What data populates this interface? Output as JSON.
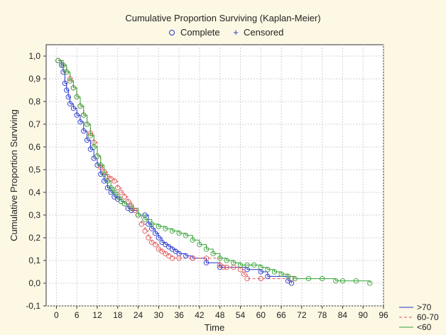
{
  "chart_data": {
    "type": "line",
    "title": "Cumulative Proportion Surviving (Kaplan-Meier)",
    "xlabel": "Time",
    "ylabel": "Cumulative Proportion Surviving",
    "xlim": [
      -3,
      96
    ],
    "ylim": [
      -0.1,
      1.05
    ],
    "x_ticks": [
      "0",
      "6",
      "12",
      "18",
      "24",
      "30",
      "36",
      "42",
      "48",
      "54",
      "60",
      "66",
      "72",
      "78",
      "84",
      "90",
      "96"
    ],
    "y_ticks": [
      "-0,1",
      "0,0",
      "0,1",
      "0,2",
      "0,3",
      "0,4",
      "0,5",
      "0,6",
      "0,7",
      "0,8",
      "0,9",
      "1,0"
    ],
    "grid": true,
    "marker_legend": [
      {
        "label": "Complete",
        "symbol": "o"
      },
      {
        "label": "Censored",
        "symbol": "+"
      }
    ],
    "legend_position": "bottom-right",
    "series": [
      {
        "name": ">70",
        "color": "#2233cc",
        "dash": "solid",
        "x": [
          0.5,
          1.5,
          2,
          2.5,
          3,
          3.5,
          4,
          5,
          6,
          7,
          8,
          9,
          10,
          11,
          12,
          13,
          14,
          15,
          16,
          17,
          18,
          19,
          20,
          21,
          22,
          24,
          26,
          27,
          28,
          29,
          30,
          31,
          32,
          33,
          34,
          35,
          36,
          38,
          40,
          44,
          48,
          56,
          60,
          62,
          68,
          69
        ],
        "y": [
          0.98,
          0.96,
          0.93,
          0.88,
          0.85,
          0.82,
          0.79,
          0.77,
          0.74,
          0.71,
          0.67,
          0.63,
          0.59,
          0.55,
          0.52,
          0.48,
          0.45,
          0.42,
          0.4,
          0.38,
          0.37,
          0.36,
          0.35,
          0.33,
          0.32,
          0.3,
          0.3,
          0.26,
          0.24,
          0.22,
          0.2,
          0.18,
          0.17,
          0.16,
          0.15,
          0.14,
          0.13,
          0.12,
          0.11,
          0.09,
          0.07,
          0.06,
          0.05,
          0.03,
          0.01,
          0.0
        ]
      },
      {
        "name": "60-70",
        "color": "#e05050",
        "dash": "4,3",
        "x": [
          0.5,
          2,
          3,
          4,
          5,
          6,
          7,
          8,
          9,
          10,
          11,
          12,
          13,
          14,
          15,
          16,
          17,
          18,
          19,
          20,
          21,
          22,
          23,
          24,
          25,
          26,
          27,
          28,
          29,
          30,
          31,
          32,
          33,
          34,
          36,
          40,
          44,
          48,
          49,
          50,
          52,
          54,
          55,
          56,
          60,
          69
        ],
        "y": [
          0.98,
          0.96,
          0.93,
          0.9,
          0.86,
          0.82,
          0.78,
          0.74,
          0.7,
          0.66,
          0.62,
          0.56,
          0.51,
          0.49,
          0.47,
          0.46,
          0.45,
          0.42,
          0.4,
          0.38,
          0.36,
          0.34,
          0.32,
          0.3,
          0.26,
          0.23,
          0.2,
          0.18,
          0.17,
          0.15,
          0.14,
          0.13,
          0.12,
          0.11,
          0.11,
          0.11,
          0.11,
          0.08,
          0.07,
          0.07,
          0.07,
          0.06,
          0.04,
          0.02,
          0.02,
          0.02
        ]
      },
      {
        "name": "<60",
        "color": "#33a033",
        "dash": "solid",
        "x": [
          0.5,
          2,
          3,
          4,
          5,
          6,
          7,
          8,
          9,
          10,
          11,
          12,
          13,
          14,
          15,
          16,
          17,
          18,
          19,
          20,
          22,
          24,
          26,
          28,
          30,
          32,
          34,
          36,
          38,
          40,
          42,
          44,
          46,
          48,
          50,
          52,
          54,
          56,
          58,
          60,
          62,
          64,
          66,
          68,
          70,
          74,
          78,
          82,
          84,
          88,
          92
        ],
        "y": [
          0.98,
          0.96,
          0.93,
          0.89,
          0.86,
          0.82,
          0.78,
          0.74,
          0.7,
          0.65,
          0.6,
          0.56,
          0.52,
          0.48,
          0.45,
          0.42,
          0.4,
          0.38,
          0.36,
          0.35,
          0.33,
          0.3,
          0.28,
          0.26,
          0.25,
          0.24,
          0.23,
          0.22,
          0.21,
          0.19,
          0.17,
          0.15,
          0.13,
          0.11,
          0.1,
          0.09,
          0.08,
          0.08,
          0.08,
          0.07,
          0.06,
          0.05,
          0.04,
          0.03,
          0.02,
          0.02,
          0.02,
          0.01,
          0.01,
          0.01,
          0.0
        ]
      }
    ]
  }
}
